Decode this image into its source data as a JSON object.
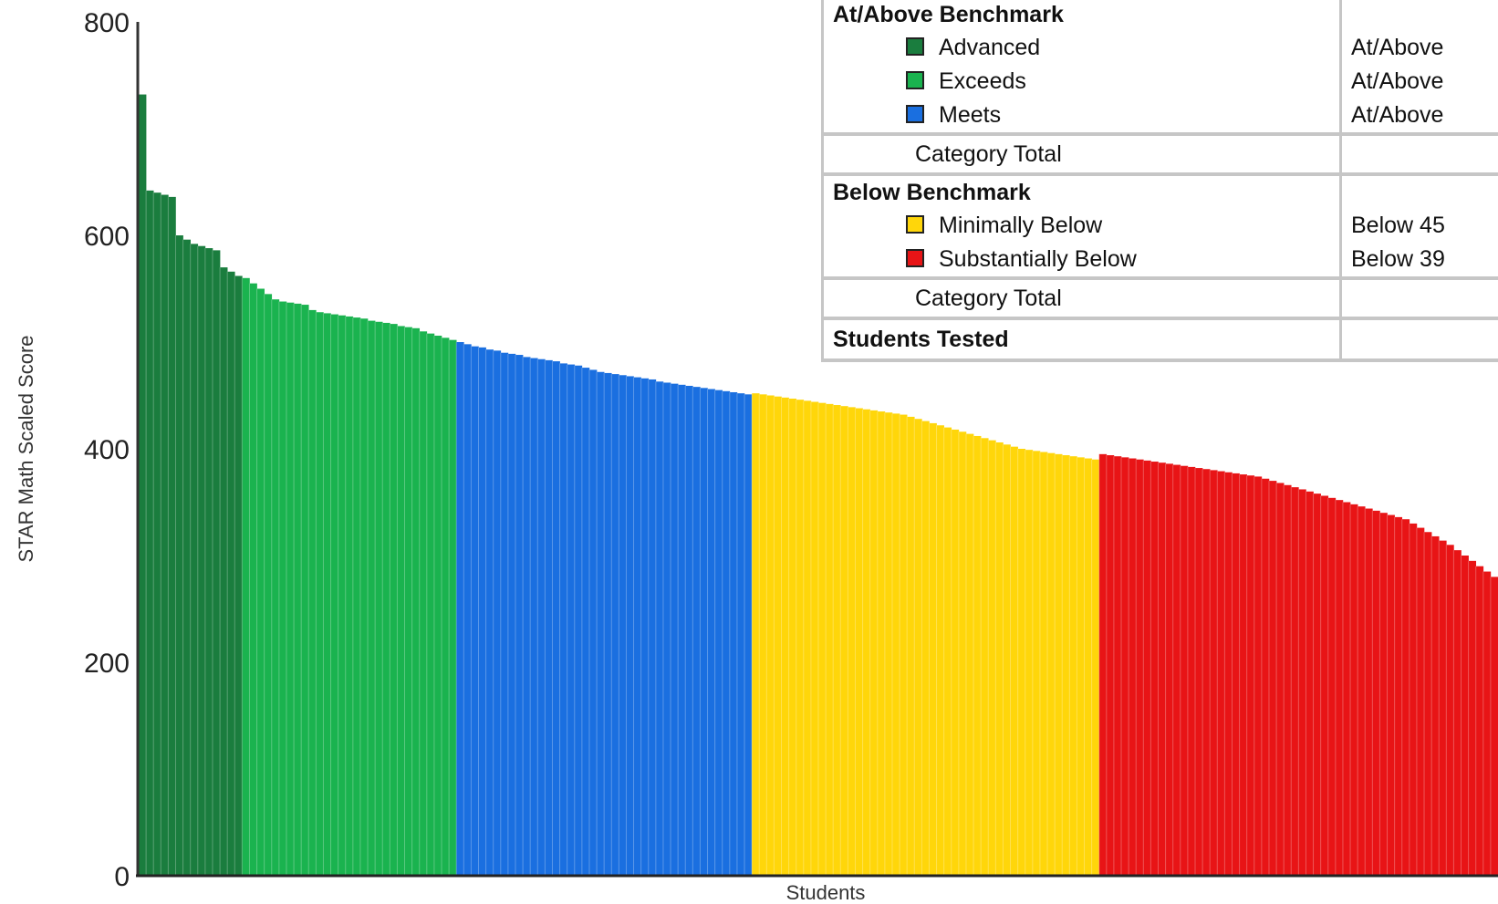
{
  "chart_data": {
    "type": "bar",
    "title": "",
    "xlabel": "Students",
    "ylabel": "STAR Math Scaled Score",
    "ylim": [
      0,
      800
    ],
    "yticks": [
      0,
      200,
      400,
      600,
      800
    ],
    "grid": false,
    "sorted": "descending",
    "series": [
      {
        "name": "Advanced",
        "color": "#1a7d3e",
        "values": [
          732,
          642,
          640,
          638,
          636,
          600,
          596,
          592,
          590,
          588,
          586,
          570,
          566,
          562
        ]
      },
      {
        "name": "Exceeds",
        "color": "#1ab34f",
        "values": [
          560,
          555,
          550,
          545,
          540,
          538,
          537,
          536,
          535,
          530,
          528,
          527,
          526,
          525,
          524,
          523,
          522,
          520,
          519,
          518,
          517,
          515,
          514,
          513,
          510,
          508,
          506,
          504,
          502
        ]
      },
      {
        "name": "Meets",
        "color": "#1a6fe0",
        "values": [
          500,
          498,
          496,
          495,
          493,
          492,
          490,
          489,
          488,
          486,
          485,
          484,
          483,
          482,
          480,
          479,
          478,
          476,
          474,
          472,
          471,
          470,
          469,
          468,
          467,
          466,
          465,
          463,
          462,
          461,
          460,
          459,
          458,
          457,
          456,
          455,
          454,
          453,
          452,
          451
        ]
      },
      {
        "name": "Minimally Below",
        "color": "#ffd60a",
        "values": [
          452,
          451,
          450,
          449,
          448,
          447,
          446,
          445,
          444,
          443,
          442,
          441,
          440,
          439,
          438,
          437,
          436,
          435,
          434,
          433,
          432,
          430,
          428,
          426,
          424,
          422,
          420,
          418,
          416,
          414,
          412,
          410,
          408,
          406,
          404,
          402,
          400,
          399,
          398,
          397,
          396,
          395,
          394,
          393,
          392,
          391,
          390
        ]
      },
      {
        "name": "Substantially Below",
        "color": "#e81416",
        "values": [
          395,
          394,
          393,
          392,
          391,
          390,
          389,
          388,
          387,
          386,
          385,
          384,
          383,
          382,
          381,
          380,
          379,
          378,
          377,
          376,
          375,
          374,
          372,
          370,
          368,
          366,
          364,
          362,
          360,
          358,
          356,
          354,
          352,
          350,
          348,
          346,
          344,
          342,
          340,
          338,
          336,
          334,
          330,
          326,
          322,
          318,
          314,
          310,
          305,
          300,
          295,
          290,
          285,
          280
        ]
      }
    ]
  },
  "legend_table": {
    "groups": [
      {
        "header": "At/Above Benchmark",
        "items": [
          {
            "label": "Advanced",
            "color": "#1a7d3e",
            "range": "At/Above"
          },
          {
            "label": "Exceeds",
            "color": "#1ab34f",
            "range": "At/Above"
          },
          {
            "label": "Meets",
            "color": "#1a6fe0",
            "range": "At/Above"
          }
        ],
        "total_label": "Category Total"
      },
      {
        "header": "Below Benchmark",
        "items": [
          {
            "label": "Minimally Below",
            "color": "#ffd60a",
            "range": "Below 45"
          },
          {
            "label": "Substantially Below",
            "color": "#e81416",
            "range": "Below 39"
          }
        ],
        "total_label": "Category Total"
      }
    ],
    "students_tested_label": "Students Tested"
  }
}
